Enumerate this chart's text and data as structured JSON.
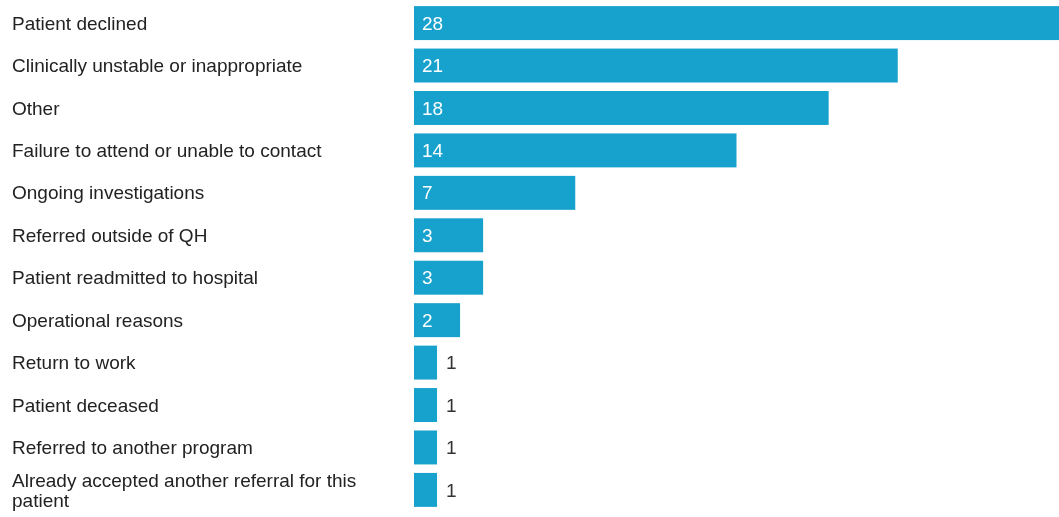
{
  "chart_data": {
    "type": "bar",
    "orientation": "horizontal",
    "categories": [
      "Patient declined",
      "Clinically unstable or inappropriate",
      "Other",
      "Failure to attend or unable to contact",
      "Ongoing investigations",
      "Referred outside of QH",
      "Patient readmitted to hospital",
      "Operational reasons",
      "Return to work",
      "Patient deceased",
      "Referred to another program",
      "Already accepted another referral for this patient"
    ],
    "values": [
      28,
      21,
      18,
      14,
      7,
      3,
      3,
      2,
      1,
      1,
      1,
      1
    ],
    "color": "#17a1cd",
    "data_labels": true
  }
}
